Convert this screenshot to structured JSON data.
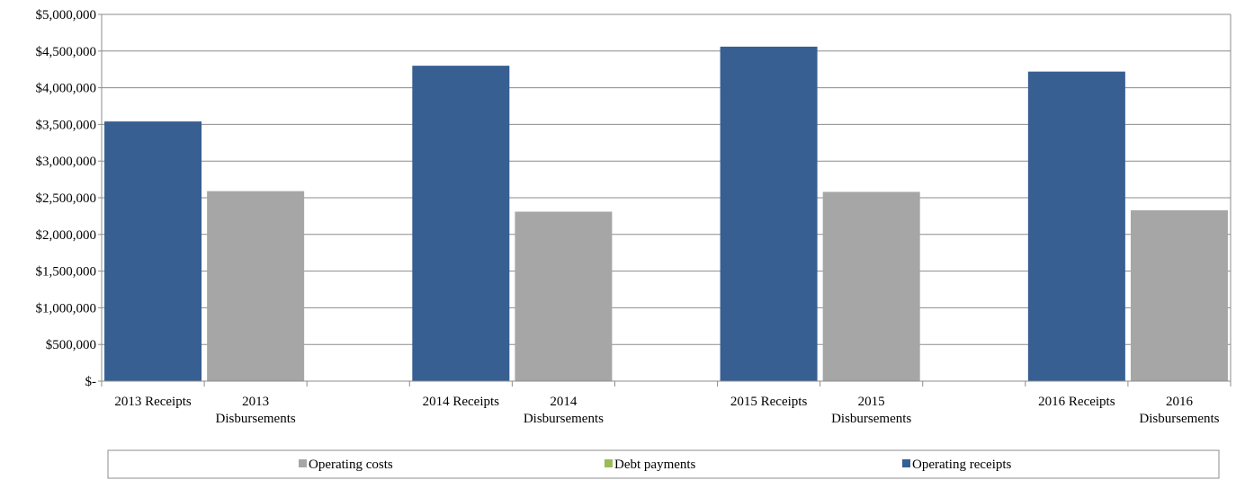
{
  "chart_data": {
    "type": "bar",
    "title": "",
    "xlabel": "",
    "ylabel": "",
    "ylim": [
      0,
      5000000
    ],
    "ytick_values": [
      0,
      500000,
      1000000,
      1500000,
      2000000,
      2500000,
      3000000,
      3500000,
      4000000,
      4500000,
      5000000
    ],
    "ytick_labels": [
      "$-",
      "$500,000",
      "$1,000,000",
      "$1,500,000",
      "$2,000,000",
      "$2,500,000",
      "$3,000,000",
      "$3,500,000",
      "$4,000,000",
      "$4,500,000",
      "$5,000,000"
    ],
    "grid": true,
    "legend_position": "bottom",
    "categories": [
      [
        "2013 Receipts"
      ],
      [
        "2013",
        "Disbursements"
      ],
      [
        ""
      ],
      [
        "2014 Receipts"
      ],
      [
        "2014",
        "Disbursements"
      ],
      [
        ""
      ],
      [
        "2015 Receipts"
      ],
      [
        "2015",
        "Disbursements"
      ],
      [
        ""
      ],
      [
        "2016 Receipts"
      ],
      [
        "2016",
        "Disbursements"
      ]
    ],
    "stacked": true,
    "series": [
      {
        "name": "Operating costs",
        "color": "#a6a6a6",
        "values": [
          0,
          2590000,
          0,
          0,
          2310000,
          0,
          0,
          2580000,
          0,
          0,
          2330000
        ]
      },
      {
        "name": "Debt payments",
        "color": "#9bbb59",
        "values": [
          0,
          0,
          0,
          0,
          0,
          0,
          0,
          0,
          0,
          0,
          0
        ]
      },
      {
        "name": "Operating receipts",
        "color": "#375f92",
        "values": [
          3540000,
          0,
          0,
          4300000,
          0,
          0,
          4560000,
          0,
          0,
          4220000,
          0
        ]
      }
    ]
  }
}
